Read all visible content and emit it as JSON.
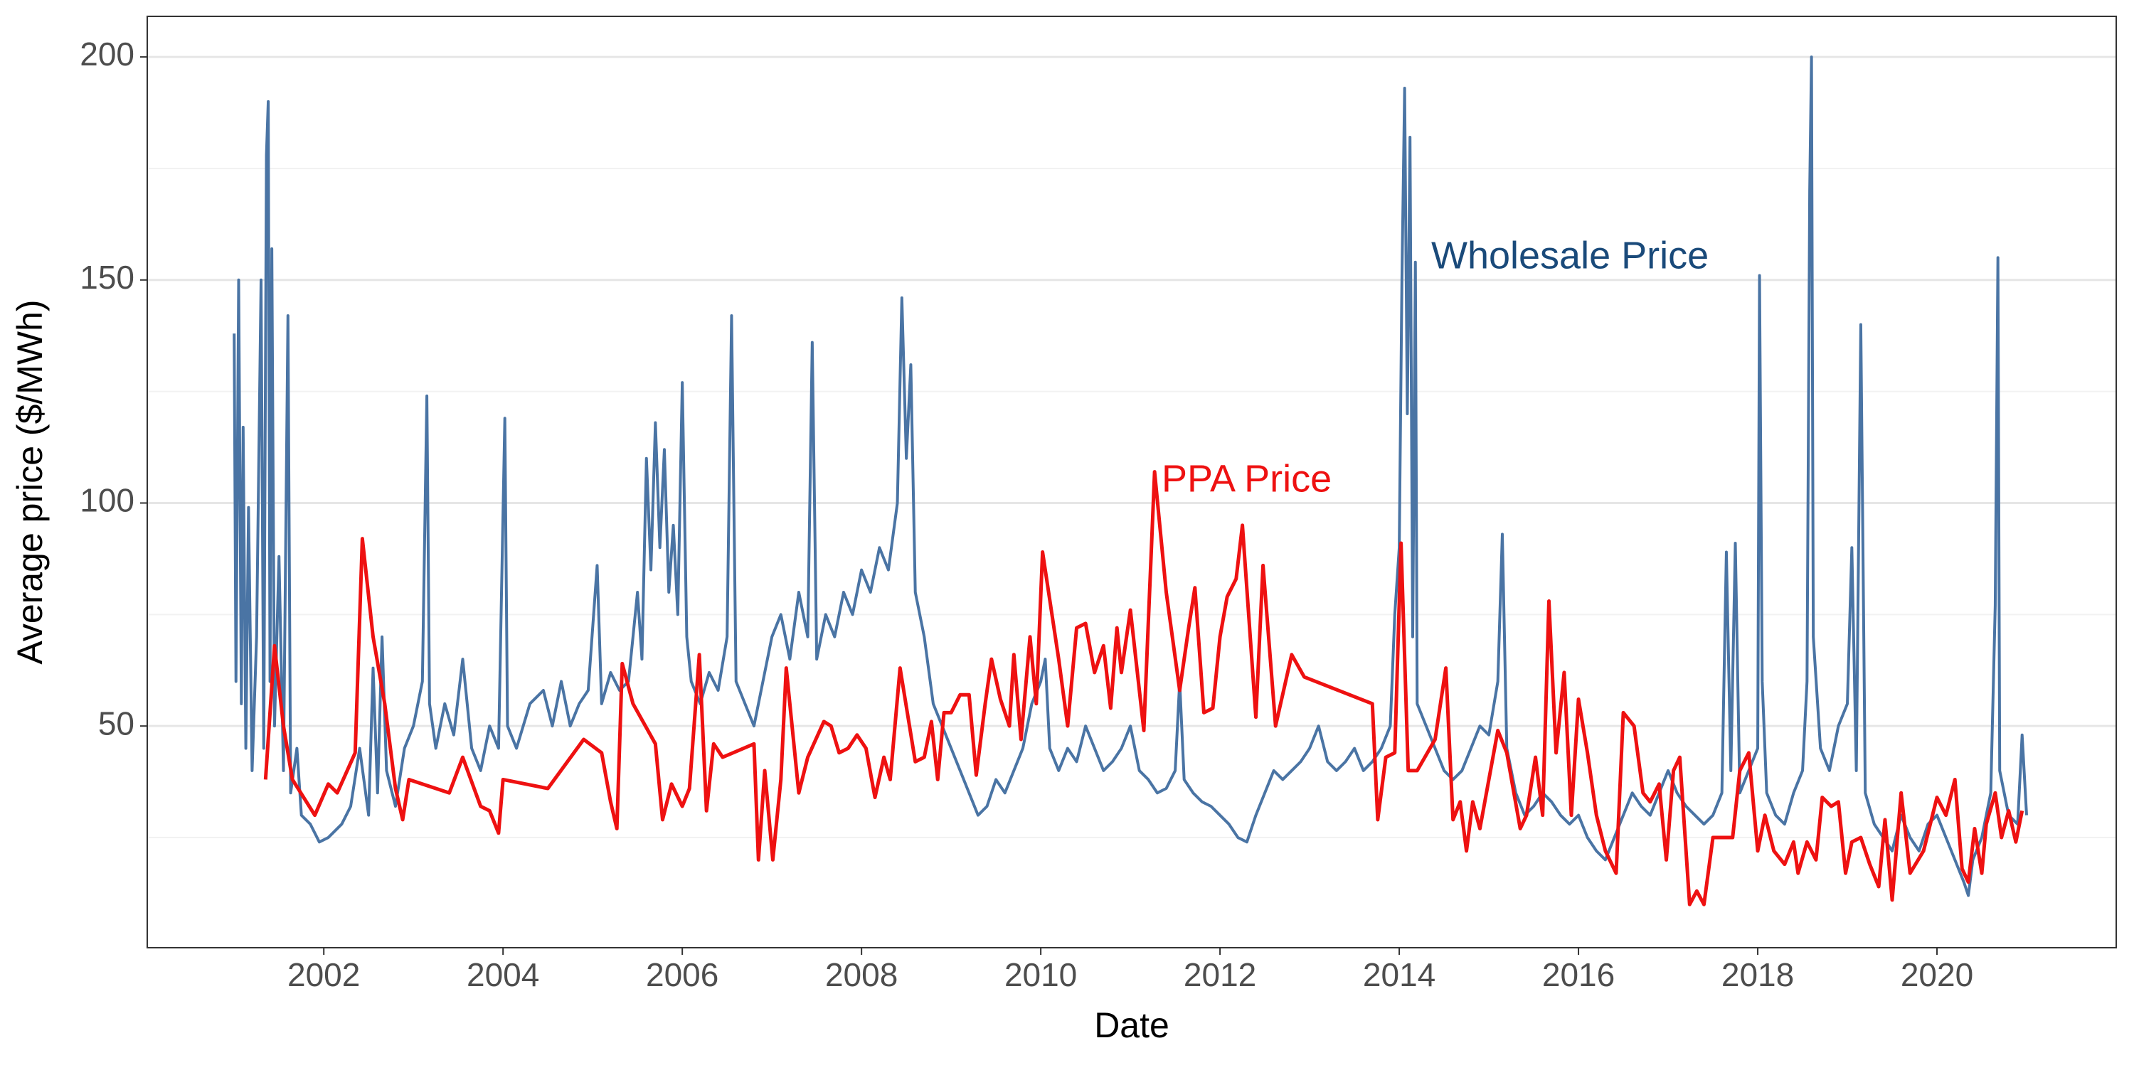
{
  "chart_data": {
    "type": "line",
    "xlabel": "Date",
    "ylabel": "Average price ($/MWh)",
    "xlim": [
      2000.03,
      2022.0
    ],
    "xticks": [
      2002,
      2004,
      2006,
      2008,
      2010,
      2012,
      2014,
      2016,
      2018,
      2020
    ],
    "ylim": [
      0.3,
      209.1
    ],
    "yticks": [
      50,
      100,
      150,
      200
    ],
    "yminorticks": [
      25,
      75,
      125,
      175
    ],
    "grid": true,
    "series": [
      {
        "name": "Wholesale Price",
        "color": "#4a74a4",
        "x": [
          2001.0,
          2001.02,
          2001.05,
          2001.08,
          2001.1,
          2001.13,
          2001.16,
          2001.2,
          2001.25,
          2001.3,
          2001.33,
          2001.36,
          2001.38,
          2001.4,
          2001.42,
          2001.45,
          2001.5,
          2001.55,
          2001.6,
          2001.63,
          2001.7,
          2001.75,
          2001.85,
          2001.95,
          2002.05,
          2002.2,
          2002.3,
          2002.4,
          2002.5,
          2002.55,
          2002.6,
          2002.65,
          2002.7,
          2002.8,
          2002.9,
          2003.0,
          2003.1,
          2003.15,
          2003.18,
          2003.25,
          2003.35,
          2003.45,
          2003.55,
          2003.65,
          2003.75,
          2003.85,
          2003.95,
          2004.02,
          2004.05,
          2004.15,
          2004.3,
          2004.45,
          2004.55,
          2004.65,
          2004.75,
          2004.85,
          2004.95,
          2005.05,
          2005.1,
          2005.2,
          2005.3,
          2005.4,
          2005.5,
          2005.55,
          2005.6,
          2005.65,
          2005.7,
          2005.75,
          2005.8,
          2005.85,
          2005.9,
          2005.95,
          2006.0,
          2006.05,
          2006.1,
          2006.2,
          2006.3,
          2006.4,
          2006.5,
          2006.55,
          2006.6,
          2006.7,
          2006.8,
          2006.9,
          2007.0,
          2007.1,
          2007.2,
          2007.3,
          2007.4,
          2007.45,
          2007.5,
          2007.6,
          2007.7,
          2007.8,
          2007.9,
          2008.0,
          2008.1,
          2008.2,
          2008.3,
          2008.4,
          2008.45,
          2008.5,
          2008.55,
          2008.6,
          2008.7,
          2008.8,
          2008.9,
          2009.0,
          2009.1,
          2009.2,
          2009.3,
          2009.4,
          2009.5,
          2009.6,
          2009.7,
          2009.8,
          2009.9,
          2010.0,
          2010.05,
          2010.1,
          2010.2,
          2010.3,
          2010.4,
          2010.5,
          2010.6,
          2010.7,
          2010.8,
          2010.9,
          2011.0,
          2011.1,
          2011.2,
          2011.3,
          2011.4,
          2011.5,
          2011.55,
          2011.6,
          2011.7,
          2011.8,
          2011.9,
          2012.0,
          2012.1,
          2012.2,
          2012.3,
          2012.4,
          2012.5,
          2012.6,
          2012.7,
          2012.8,
          2012.9,
          2013.0,
          2013.1,
          2013.2,
          2013.3,
          2013.4,
          2013.5,
          2013.6,
          2013.7,
          2013.8,
          2013.9,
          2013.95,
          2014.0,
          2014.03,
          2014.06,
          2014.09,
          2014.12,
          2014.15,
          2014.18,
          2014.2,
          2014.3,
          2014.4,
          2014.5,
          2014.6,
          2014.7,
          2014.8,
          2014.9,
          2015.0,
          2015.1,
          2015.15,
          2015.2,
          2015.3,
          2015.4,
          2015.5,
          2015.6,
          2015.7,
          2015.8,
          2015.9,
          2016.0,
          2016.1,
          2016.2,
          2016.3,
          2016.4,
          2016.5,
          2016.6,
          2016.7,
          2016.8,
          2016.9,
          2017.0,
          2017.1,
          2017.2,
          2017.3,
          2017.4,
          2017.5,
          2017.6,
          2017.65,
          2017.7,
          2017.75,
          2017.8,
          2017.9,
          2018.0,
          2018.02,
          2018.05,
          2018.1,
          2018.2,
          2018.3,
          2018.4,
          2018.5,
          2018.55,
          2018.58,
          2018.6,
          2018.62,
          2018.7,
          2018.8,
          2018.9,
          2019.0,
          2019.05,
          2019.1,
          2019.15,
          2019.2,
          2019.3,
          2019.4,
          2019.5,
          2019.6,
          2019.7,
          2019.8,
          2019.9,
          2020.0,
          2020.1,
          2020.2,
          2020.3,
          2020.35,
          2020.4,
          2020.5,
          2020.6,
          2020.65,
          2020.68,
          2020.7,
          2020.8,
          2020.9,
          2020.95,
          2021.0
        ],
        "values": [
          138,
          60,
          150,
          55,
          117,
          45,
          99,
          40,
          70,
          150,
          45,
          178,
          190,
          60,
          157,
          50,
          88,
          40,
          142,
          35,
          45,
          30,
          28,
          24,
          25,
          28,
          32,
          45,
          30,
          63,
          35,
          70,
          40,
          32,
          45,
          50,
          60,
          124,
          55,
          45,
          55,
          48,
          65,
          45,
          40,
          50,
          45,
          119,
          50,
          45,
          55,
          58,
          50,
          60,
          50,
          55,
          58,
          86,
          55,
          62,
          58,
          60,
          80,
          65,
          110,
          85,
          118,
          90,
          112,
          80,
          95,
          75,
          127,
          70,
          60,
          55,
          62,
          58,
          70,
          142,
          60,
          55,
          50,
          60,
          70,
          75,
          65,
          80,
          70,
          136,
          65,
          75,
          70,
          80,
          75,
          85,
          80,
          90,
          85,
          100,
          146,
          110,
          131,
          80,
          70,
          55,
          50,
          45,
          40,
          35,
          30,
          32,
          38,
          35,
          40,
          45,
          55,
          60,
          65,
          45,
          40,
          45,
          42,
          50,
          45,
          40,
          42,
          45,
          50,
          40,
          38,
          35,
          36,
          40,
          60,
          38,
          35,
          33,
          32,
          30,
          28,
          25,
          24,
          30,
          35,
          40,
          38,
          40,
          42,
          45,
          50,
          42,
          40,
          42,
          45,
          40,
          42,
          45,
          50,
          75,
          90,
          150,
          193,
          120,
          182,
          70,
          154,
          55,
          50,
          45,
          40,
          38,
          40,
          45,
          50,
          48,
          60,
          93,
          45,
          35,
          30,
          32,
          35,
          33,
          30,
          28,
          30,
          25,
          22,
          20,
          25,
          30,
          35,
          32,
          30,
          35,
          40,
          35,
          32,
          30,
          28,
          30,
          35,
          89,
          40,
          91,
          35,
          40,
          45,
          151,
          60,
          35,
          30,
          28,
          35,
          40,
          60,
          170,
          200,
          70,
          45,
          40,
          50,
          55,
          90,
          40,
          140,
          35,
          28,
          25,
          22,
          30,
          25,
          22,
          28,
          30,
          25,
          20,
          15,
          12,
          20,
          25,
          35,
          77,
          155,
          40,
          30,
          28,
          48,
          30
        ]
      },
      {
        "name": "PPA Price",
        "color": "#ee1111",
        "x": [
          2001.35,
          2001.45,
          2001.55,
          2001.65,
          2001.9,
          2002.05,
          2002.15,
          2002.35,
          2002.43,
          2002.55,
          2002.68,
          2002.8,
          2002.88,
          2002.95,
          2003.4,
          2003.55,
          2003.75,
          2003.85,
          2003.95,
          2004.0,
          2004.5,
          2004.9,
          2005.1,
          2005.2,
          2005.27,
          2005.33,
          2005.45,
          2005.7,
          2005.78,
          2005.88,
          2006.0,
          2006.08,
          2006.19,
          2006.27,
          2006.35,
          2006.45,
          2006.8,
          2006.85,
          2006.92,
          2007.01,
          2007.1,
          2007.16,
          2007.3,
          2007.4,
          2007.58,
          2007.66,
          2007.75,
          2007.85,
          2007.95,
          2008.05,
          2008.15,
          2008.25,
          2008.32,
          2008.43,
          2008.6,
          2008.7,
          2008.78,
          2008.85,
          2008.92,
          2009.0,
          2009.1,
          2009.2,
          2009.28,
          2009.38,
          2009.45,
          2009.55,
          2009.65,
          2009.7,
          2009.78,
          2009.88,
          2009.95,
          2010.02,
          2010.2,
          2010.3,
          2010.4,
          2010.5,
          2010.6,
          2010.7,
          2010.78,
          2010.85,
          2010.9,
          2011.0,
          2011.15,
          2011.27,
          2011.4,
          2011.55,
          2011.65,
          2011.72,
          2011.82,
          2011.92,
          2012.0,
          2012.08,
          2012.18,
          2012.25,
          2012.4,
          2012.48,
          2012.62,
          2012.8,
          2012.94,
          2013.7,
          2013.76,
          2013.85,
          2013.95,
          2014.02,
          2014.1,
          2014.2,
          2014.4,
          2014.52,
          2014.6,
          2014.68,
          2014.75,
          2014.82,
          2014.9,
          2015.1,
          2015.2,
          2015.35,
          2015.42,
          2015.52,
          2015.6,
          2015.67,
          2015.75,
          2015.84,
          2015.92,
          2016.0,
          2016.1,
          2016.2,
          2016.3,
          2016.42,
          2016.5,
          2016.62,
          2016.72,
          2016.8,
          2016.9,
          2016.98,
          2017.06,
          2017.13,
          2017.24,
          2017.32,
          2017.4,
          2017.5,
          2017.65,
          2017.72,
          2017.8,
          2017.9,
          2018.0,
          2018.08,
          2018.18,
          2018.3,
          2018.4,
          2018.45,
          2018.55,
          2018.65,
          2018.72,
          2018.82,
          2018.9,
          2018.98,
          2019.05,
          2019.15,
          2019.25,
          2019.35,
          2019.42,
          2019.5,
          2019.6,
          2019.7,
          2019.85,
          2020.0,
          2020.1,
          2020.2,
          2020.28,
          2020.35,
          2020.42,
          2020.5,
          2020.55,
          2020.65,
          2020.72,
          2020.8,
          2020.88,
          2020.95
        ],
        "values": [
          38,
          68,
          50,
          38,
          30,
          37,
          35,
          44,
          92,
          70,
          55,
          36,
          29,
          38,
          35,
          43,
          32,
          31,
          26,
          38,
          36,
          47,
          44,
          33,
          27,
          64,
          55,
          46,
          29,
          37,
          32,
          36,
          66,
          31,
          46,
          43,
          46,
          20,
          40,
          20,
          38,
          63,
          35,
          43,
          51,
          50,
          44,
          45,
          48,
          45,
          34,
          43,
          38,
          63,
          42,
          43,
          51,
          38,
          53,
          53,
          57,
          57,
          39,
          55,
          65,
          56,
          50,
          66,
          47,
          70,
          55,
          89,
          65,
          50,
          72,
          73,
          62,
          68,
          54,
          72,
          62,
          76,
          49,
          107,
          80,
          58,
          72,
          81,
          53,
          54,
          70,
          79,
          83,
          95,
          52,
          86,
          50,
          66,
          61,
          55,
          29,
          43,
          44,
          91,
          40,
          40,
          47,
          63,
          29,
          33,
          22,
          33,
          27,
          49,
          44,
          27,
          30,
          43,
          30,
          78,
          44,
          62,
          30,
          56,
          44,
          30,
          22,
          17,
          53,
          50,
          35,
          33,
          37,
          20,
          40,
          43,
          10,
          13,
          10,
          25,
          25,
          25,
          40,
          44,
          22,
          30,
          22,
          19,
          24,
          17,
          24,
          20,
          34,
          32,
          33,
          17,
          24,
          25,
          19,
          14,
          29,
          11,
          35,
          17,
          22,
          34,
          30,
          38,
          18,
          15,
          27,
          17,
          28,
          35,
          25,
          31,
          24,
          31
        ]
      }
    ]
  }
}
